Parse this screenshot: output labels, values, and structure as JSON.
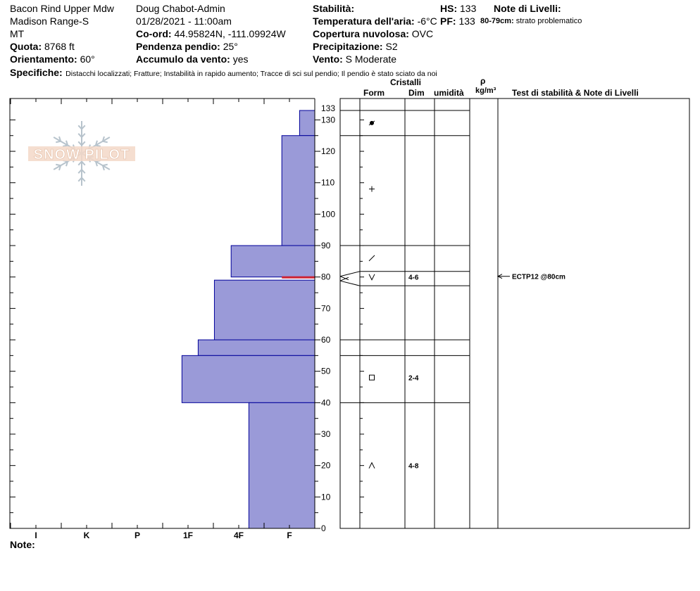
{
  "header": {
    "col1": [
      "Bacon Rind Upper Mdw",
      "Madison Range-S",
      "MT"
    ],
    "quota": {
      "label": "Quota:",
      "value": "8768 ft"
    },
    "orientamento": {
      "label": "Orientamento:",
      "value": "60°"
    },
    "col2": [
      "Doug Chabot-Admin",
      "01/28/2021 - 11:00am"
    ],
    "coord": {
      "label": "Co-ord:",
      "value": "44.95824N, -111.09924W"
    },
    "pendenza": {
      "label": "Pendenza pendio:",
      "value": "25°"
    },
    "accumulo": {
      "label": "Accumulo da vento:",
      "value": "yes"
    },
    "stabilita": {
      "label": "Stabilità:",
      "value": ""
    },
    "temperatura": {
      "label": "Temperatura dell'aria:",
      "value": "-6°C"
    },
    "copertura": {
      "label": "Copertura nuvolosa:",
      "value": "OVC"
    },
    "precipitazione": {
      "label": "Precipitazione:",
      "value": "S2"
    },
    "vento": {
      "label": "Vento:",
      "value": "S Moderate"
    },
    "hs": {
      "label": "HS:",
      "value": "133"
    },
    "pf": {
      "label": "PF:",
      "value": "133"
    },
    "note_livelli": {
      "label": "Note di Livelli:"
    },
    "layer_note": {
      "label": "80-79cm:",
      "value": "strato problematico"
    },
    "specifiche": {
      "label": "Specifiche:",
      "value": "Distacchi localizzati;  Fratture;  Instabilità in rapido aumento;  Tracce di sci sul pendio;  Il pendio è stato sciato da noi"
    },
    "note_label": "Note:"
  },
  "logo": {
    "text": "SNOW PILOT"
  },
  "table_headers": {
    "cristalli": "Cristalli",
    "form": "Form",
    "dim": "Dim",
    "umidita": "umidità",
    "rho": "ρ",
    "density_unit": "kg/m³",
    "tests": "Test di stabilità & Note di Livelli"
  },
  "colors": {
    "layer_fill": "#9a9ad8",
    "layer_stroke": "#00009a",
    "problem_layer": "#cc2233"
  },
  "chart_data": {
    "type": "bar",
    "orientation": "horizontal",
    "y_axis": {
      "label": "",
      "range": [
        0,
        133
      ],
      "ticks": [
        0,
        10,
        20,
        30,
        40,
        50,
        60,
        70,
        80,
        90,
        100,
        110,
        120,
        130,
        133
      ]
    },
    "x_axis": {
      "label": "",
      "tick_labels": [
        "I",
        "K",
        "P",
        "1F",
        "4F",
        "F"
      ]
    },
    "hardness_scale_note": "x value = hardness index (F=0 at right edge, 4F=1, 1F=2, P=3, K=4, I=5)",
    "layers": [
      {
        "top": 133,
        "bottom": 125,
        "hardness": 0.3
      },
      {
        "top": 125,
        "bottom": 90,
        "hardness": 0.65
      },
      {
        "top": 90,
        "bottom": 80,
        "hardness": 1.65
      },
      {
        "top": 79,
        "bottom": 60,
        "hardness": 1.98
      },
      {
        "top": 60,
        "bottom": 55,
        "hardness": 2.3
      },
      {
        "top": 55,
        "bottom": 40,
        "hardness": 2.62
      },
      {
        "top": 40,
        "bottom": 0,
        "hardness": 1.3
      }
    ],
    "problem_layer": {
      "top": 80,
      "bottom": 79,
      "hardness": 0.65
    },
    "layer_boundaries": [
      133,
      125,
      90,
      80,
      79,
      60,
      55,
      40,
      0
    ],
    "crystals": [
      {
        "depth": 129,
        "form": "●",
        "dim": ""
      },
      {
        "depth": 108,
        "form": "+",
        "dim": ""
      },
      {
        "depth": 86,
        "form": "/",
        "dim": ""
      },
      {
        "depth": 80,
        "form": "V",
        "dim": "4-6"
      },
      {
        "depth": 48,
        "form": "□",
        "dim": "2-4"
      },
      {
        "depth": 20,
        "form": "^",
        "dim": "4-8"
      }
    ],
    "tests": [
      {
        "depth": 80,
        "text": "ECTP12 @80cm"
      }
    ]
  }
}
